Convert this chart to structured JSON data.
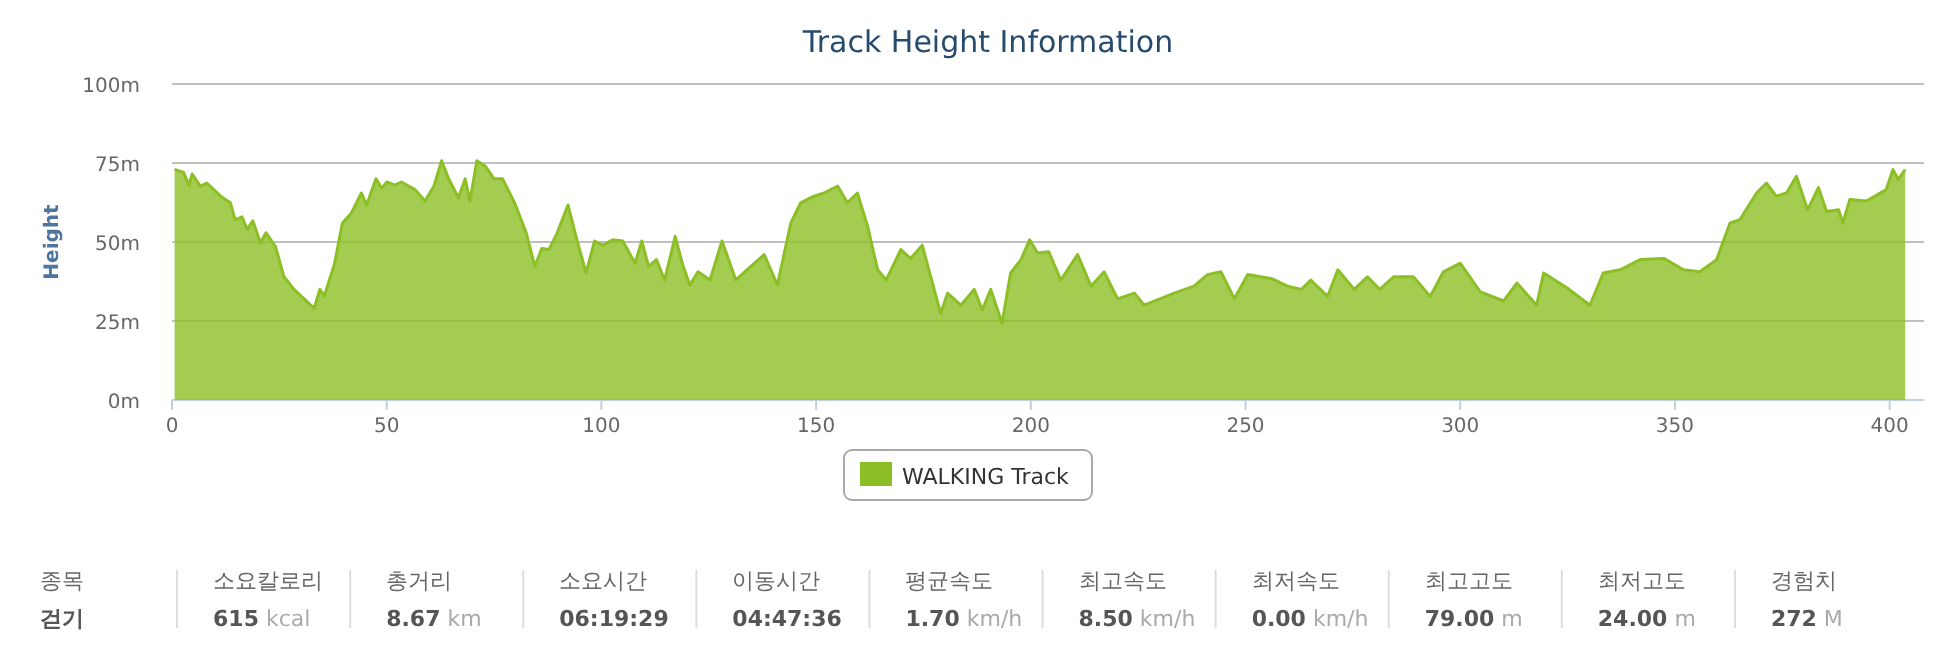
{
  "chart_data": {
    "type": "area",
    "title": "Track Height Information",
    "ylabel": "Height",
    "xlim": [
      0,
      408
    ],
    "xticks": [
      0,
      50,
      100,
      150,
      200,
      250,
      300,
      350,
      400
    ],
    "ylim": [
      0,
      100
    ],
    "yticks": [
      {
        "value": 0,
        "label": "0m"
      },
      {
        "value": 25,
        "label": "25m"
      },
      {
        "value": 50,
        "label": "50m"
      },
      {
        "value": 75,
        "label": "75m"
      },
      {
        "value": 100,
        "label": "100m"
      }
    ],
    "grid": "y",
    "legend": "bottom",
    "marker": "none",
    "line_style": "solid",
    "series": [
      {
        "name": "WALKING Track",
        "color": "#8cbf26",
        "x": [
          0.6,
          2.7,
          3.9,
          4.7,
          6.6,
          8.1,
          11.3,
          13.6,
          14.7,
          16.3,
          17.5,
          18.8,
          20.6,
          21.9,
          24.1,
          26.1,
          28.4,
          33.1,
          34.4,
          35.5,
          37.8,
          39.7,
          41.7,
          44.1,
          45.3,
          47.5,
          48.8,
          50,
          51.9,
          53.4,
          56.6,
          58.9,
          61,
          62.8,
          64.4,
          66.7,
          68.3,
          69.4,
          71,
          73,
          75,
          77,
          79.8,
          82.5,
          84.5,
          86.1,
          87.8,
          89.7,
          92.2,
          94.1,
          96.4,
          98.4,
          100.3,
          102.6,
          105,
          107.8,
          109.4,
          111,
          112.8,
          114.7,
          117.2,
          118.8,
          120.6,
          122.5,
          125.3,
          128.1,
          131.3,
          133.9,
          137.9,
          141,
          144.1,
          146.4,
          149.5,
          151.9,
          155,
          157.3,
          159.6,
          162,
          164.3,
          166.3,
          169.7,
          172,
          174.7,
          179,
          180.6,
          183.7,
          186.8,
          188.7,
          190.7,
          193.3,
          195.3,
          197.7,
          199.7,
          201.6,
          204.2,
          207,
          210.9,
          214,
          217.1,
          220.2,
          224.1,
          226.4,
          233.4,
          238,
          241.1,
          244.3,
          247.4,
          250.5,
          256,
          259.8,
          263,
          265.2,
          269.1,
          271.5,
          275.3,
          278.4,
          281.2,
          284.5,
          289.1,
          293,
          296.1,
          300,
          304.7,
          310.1,
          313.2,
          317.8,
          319.4,
          324.8,
          330.2,
          333.3,
          337.2,
          341.9,
          347.4,
          352,
          355.8,
          359.7,
          362.8,
          365.1,
          369,
          371.3,
          373.6,
          376,
          378.3,
          380.9,
          383.4,
          385.3,
          388.1,
          389.1,
          390.7,
          394.6,
          399.2,
          400.8,
          402,
          403.6
        ],
        "values": [
          73,
          72,
          68,
          71.5,
          67.6,
          68.7,
          64.5,
          62.4,
          57,
          58,
          54,
          56.7,
          49.7,
          52.9,
          48.6,
          39,
          35,
          29,
          35,
          33,
          43,
          56,
          59,
          65.5,
          61.7,
          70,
          67,
          69,
          68,
          69,
          66.6,
          63,
          67.7,
          75.7,
          70,
          64,
          70,
          63,
          75.7,
          74,
          70,
          70,
          62.4,
          52.9,
          42.3,
          48,
          47.6,
          52.9,
          61.7,
          51.8,
          40.2,
          50.3,
          49,
          50.7,
          50.3,
          43.3,
          50.3,
          42.3,
          44.4,
          38,
          51.8,
          43.3,
          36.4,
          40.6,
          38,
          50.3,
          38,
          41.2,
          46,
          36.4,
          56,
          62.4,
          64.5,
          65.5,
          67.7,
          62.4,
          65.5,
          55,
          41.2,
          38,
          47.6,
          44.8,
          49,
          27.5,
          33.8,
          30,
          35,
          28.5,
          35,
          24.3,
          40.2,
          44.4,
          50.7,
          46.5,
          46.9,
          38,
          46,
          36,
          40.6,
          32,
          33.8,
          30,
          33.8,
          36,
          39.7,
          40.6,
          32,
          39.7,
          38.5,
          36,
          35,
          38,
          32.8,
          41.2,
          35,
          39,
          35,
          39,
          39,
          32.8,
          40.6,
          43.3,
          34.2,
          31.3,
          37,
          30,
          40.2,
          35.5,
          30,
          40.2,
          41.2,
          44.4,
          44.8,
          41.2,
          40.6,
          44.4,
          56,
          57,
          65.5,
          68.7,
          64.5,
          65.5,
          70.8,
          60.2,
          67.2,
          59.6,
          60.2,
          56,
          63.4,
          63,
          66.6,
          72.9,
          69.8,
          72.9
        ]
      }
    ],
    "annotations": [
      "종목",
      "걷기",
      "소요칼로리",
      "615 kcal",
      "총거리",
      "8.67 km",
      "소요시간",
      "06:19:29",
      "이동시간",
      "04:47:36",
      "평균속도",
      "1.70 km/h",
      "최고속도",
      "8.50 km/h",
      "최저속도",
      "0.00 km/h",
      "최고고도",
      "79.00 m",
      "최저고도",
      "24.00 m",
      "경험치",
      "272 M"
    ]
  }
}
